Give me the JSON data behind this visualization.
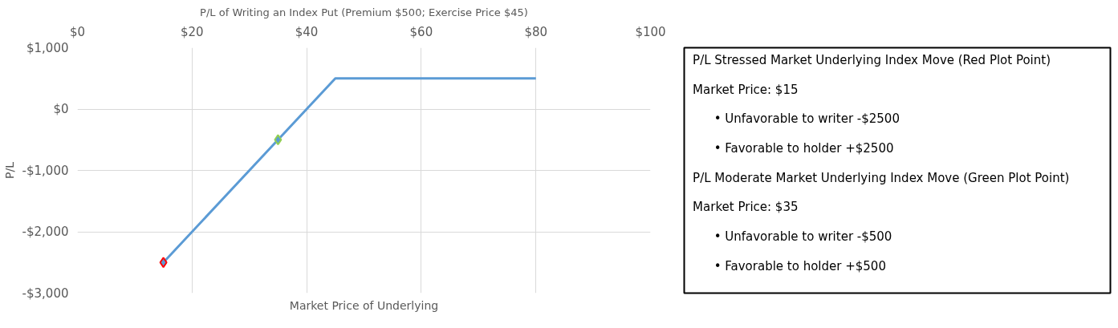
{
  "chart_data": [
    {
      "type": "line",
      "title": "P/L of Writing an Index Put (Premium $500; Exercise Price $45)",
      "xlabel": "Market Price of Underlying",
      "ylabel": "P/L",
      "xlim": [
        0,
        100
      ],
      "xticks": [
        {
          "value": 0,
          "label": "$0"
        },
        {
          "value": 20,
          "label": "$20"
        },
        {
          "value": 40,
          "label": "$40"
        },
        {
          "value": 60,
          "label": "$60"
        },
        {
          "value": 80,
          "label": "$80"
        },
        {
          "value": 100,
          "label": "$100"
        }
      ],
      "ylim": [
        -3000,
        1000
      ],
      "yticks": [
        {
          "value": 1000,
          "label": "$1,000"
        },
        {
          "value": 0,
          "label": "$0"
        },
        {
          "value": -1000,
          "label": "-$1,000"
        },
        {
          "value": -2000,
          "label": "-$2,000"
        },
        {
          "value": -3000,
          "label": "-$3,000"
        }
      ],
      "grid": true,
      "series": [
        {
          "type": "line",
          "color": "#5b9bd5",
          "x": [
            15,
            45,
            80
          ],
          "values": [
            -2500,
            500,
            500
          ]
        },
        {
          "type": "scatter",
          "marker": "diamond",
          "color": "#ff0000",
          "x": [
            15
          ],
          "values": [
            -2500
          ]
        },
        {
          "type": "scatter",
          "marker": "diamond",
          "color": "#92d050",
          "x": [
            35
          ],
          "values": [
            -500
          ]
        }
      ]
    },
    {
      "type": "other",
      "annotations": [
        "P/L Stressed Market Underlying Index Move (Red Plot Point)",
        "Market Price: $15",
        "• Unfavorable to writer  -$2500",
        "• Favorable to holder     +$2500",
        "P/L Moderate Market Underlying Index Move (Green Plot Point)",
        "Market Price: $35",
        "• Unfavorable to writer   -$500",
        "• Favorable to holder      +$500"
      ]
    }
  ]
}
